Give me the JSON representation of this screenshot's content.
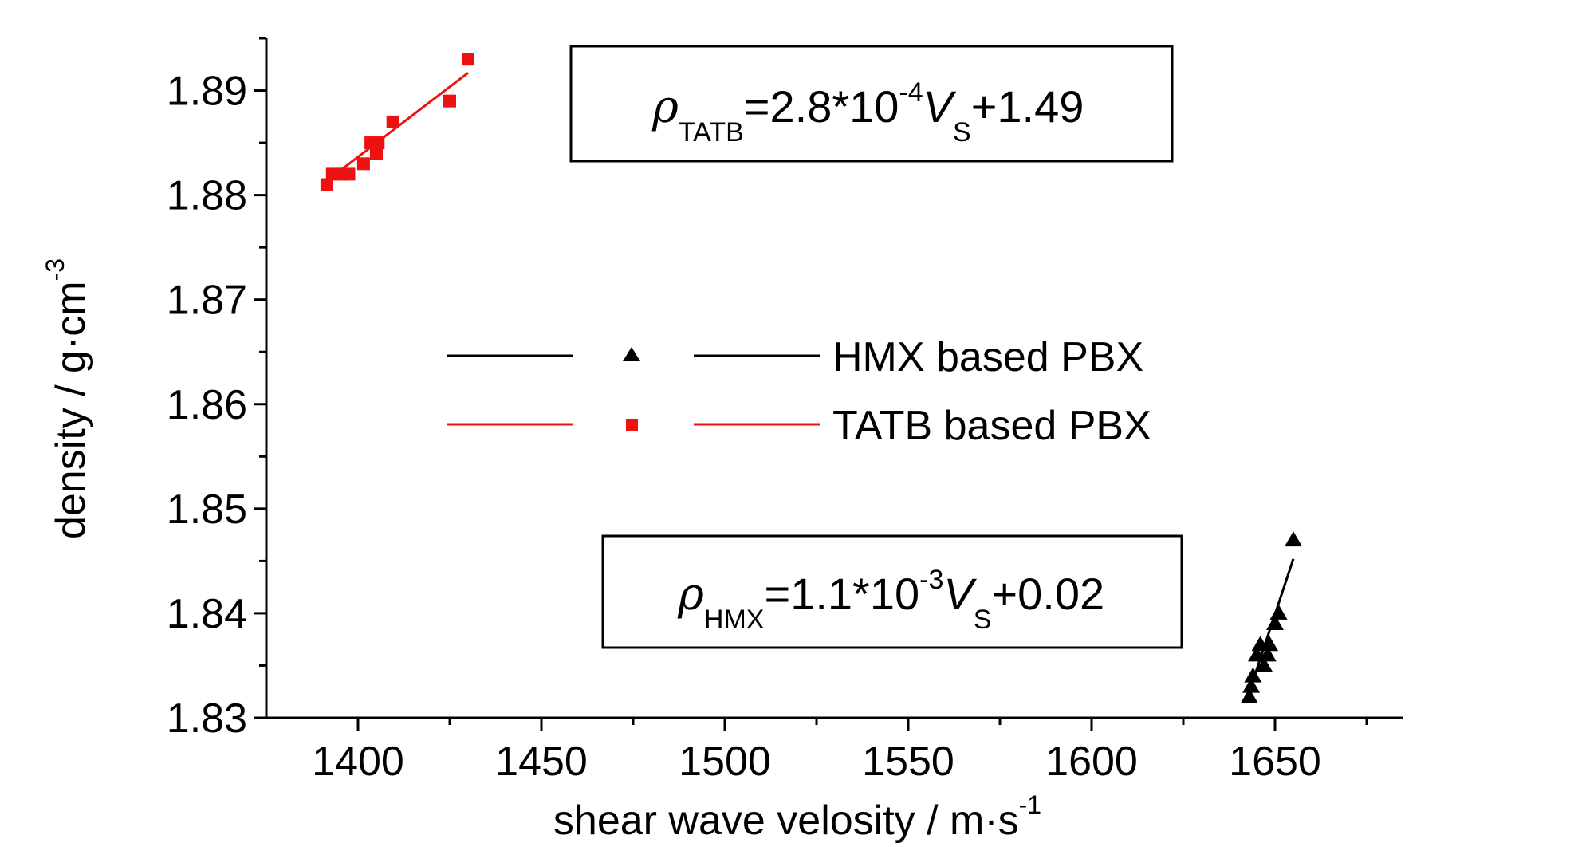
{
  "chart_data": {
    "type": "scatter",
    "xlabel": "shear wave velosity / m·s",
    "xlabel_exp": "-1",
    "ylabel": "density / g·cm",
    "ylabel_exp": "-3",
    "xlim": [
      1375,
      1685
    ],
    "ylim": [
      1.83,
      1.895
    ],
    "x_ticks": [
      1400,
      1450,
      1500,
      1550,
      1600,
      1650
    ],
    "x_tick_labels": [
      "1400",
      "1450",
      "1500",
      "1550",
      "1600",
      "1650"
    ],
    "y_ticks": [
      1.83,
      1.84,
      1.85,
      1.86,
      1.87,
      1.88,
      1.89
    ],
    "y_tick_labels": [
      "1.83",
      "1.84",
      "1.85",
      "1.86",
      "1.87",
      "1.88",
      "1.89"
    ],
    "grid": false,
    "legend_position": "center",
    "series": [
      {
        "name": "HMX based PBX",
        "color": "#000000",
        "marker": "triangle",
        "points": [
          [
            1643.0,
            1.832
          ],
          [
            1643.5,
            1.833
          ],
          [
            1644.0,
            1.834
          ],
          [
            1645.0,
            1.836
          ],
          [
            1646.0,
            1.837
          ],
          [
            1647.0,
            1.835
          ],
          [
            1648.0,
            1.836
          ],
          [
            1648.5,
            1.837
          ],
          [
            1650.0,
            1.839
          ],
          [
            1651.0,
            1.84
          ],
          [
            1655.0,
            1.847
          ]
        ],
        "fit": {
          "x": [
            1643,
            1655
          ],
          "y": [
            1.8325,
            1.8452
          ]
        }
      },
      {
        "name": "TATB based PBX",
        "color": "#ee1111",
        "marker": "square",
        "points": [
          [
            1391.5,
            1.881
          ],
          [
            1393.0,
            1.882
          ],
          [
            1395.5,
            1.882
          ],
          [
            1397.5,
            1.882
          ],
          [
            1401.5,
            1.883
          ],
          [
            1403.5,
            1.885
          ],
          [
            1405.0,
            1.884
          ],
          [
            1405.5,
            1.885
          ],
          [
            1409.5,
            1.887
          ],
          [
            1425.0,
            1.889
          ],
          [
            1430.0,
            1.893
          ]
        ],
        "fit": {
          "x": [
            1392,
            1430
          ],
          "y": [
            1.8815,
            1.8917
          ]
        }
      }
    ],
    "annotations": [
      {
        "id": "tatb",
        "rho": "ρ",
        "sub": "TATB",
        "text1": "=2.8*10",
        "sup": "-4",
        "v": "V",
        "vsub": "S",
        "text2": "+1.49"
      },
      {
        "id": "hmx",
        "rho": "ρ",
        "sub": "HMX",
        "text1": "=1.1*10",
        "sup": "-3",
        "v": "V",
        "vsub": "S",
        "text2": "+0.02"
      }
    ]
  }
}
